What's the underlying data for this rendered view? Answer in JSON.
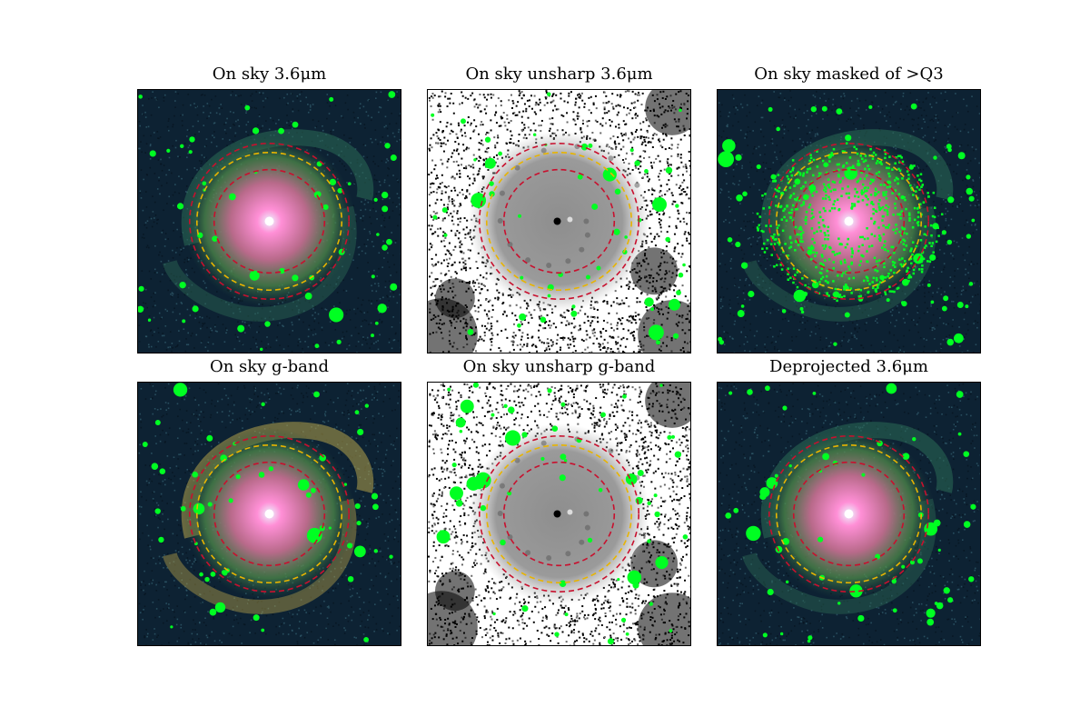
{
  "figure": {
    "panels": [
      {
        "title": "On sky 3.6μm",
        "style": "color"
      },
      {
        "title": "On sky unsharp 3.6μm",
        "style": "unsharp"
      },
      {
        "title": "On sky masked of >Q3",
        "style": "masked"
      },
      {
        "title": "On sky g-band",
        "style": "gband"
      },
      {
        "title": "On sky unsharp g-band",
        "style": "unsharp"
      },
      {
        "title": "Deprojected 3.6μm",
        "style": "deproj"
      }
    ]
  },
  "colors": {
    "mask_green": "#00ff22",
    "inner_ring": "#c8102e",
    "outer_ring": "#c8102e",
    "mid_ring": "#e8b400",
    "sky_dark": "#0d2233",
    "core_pink": "#ff8fd6",
    "core_white": "#eaf6ff"
  }
}
